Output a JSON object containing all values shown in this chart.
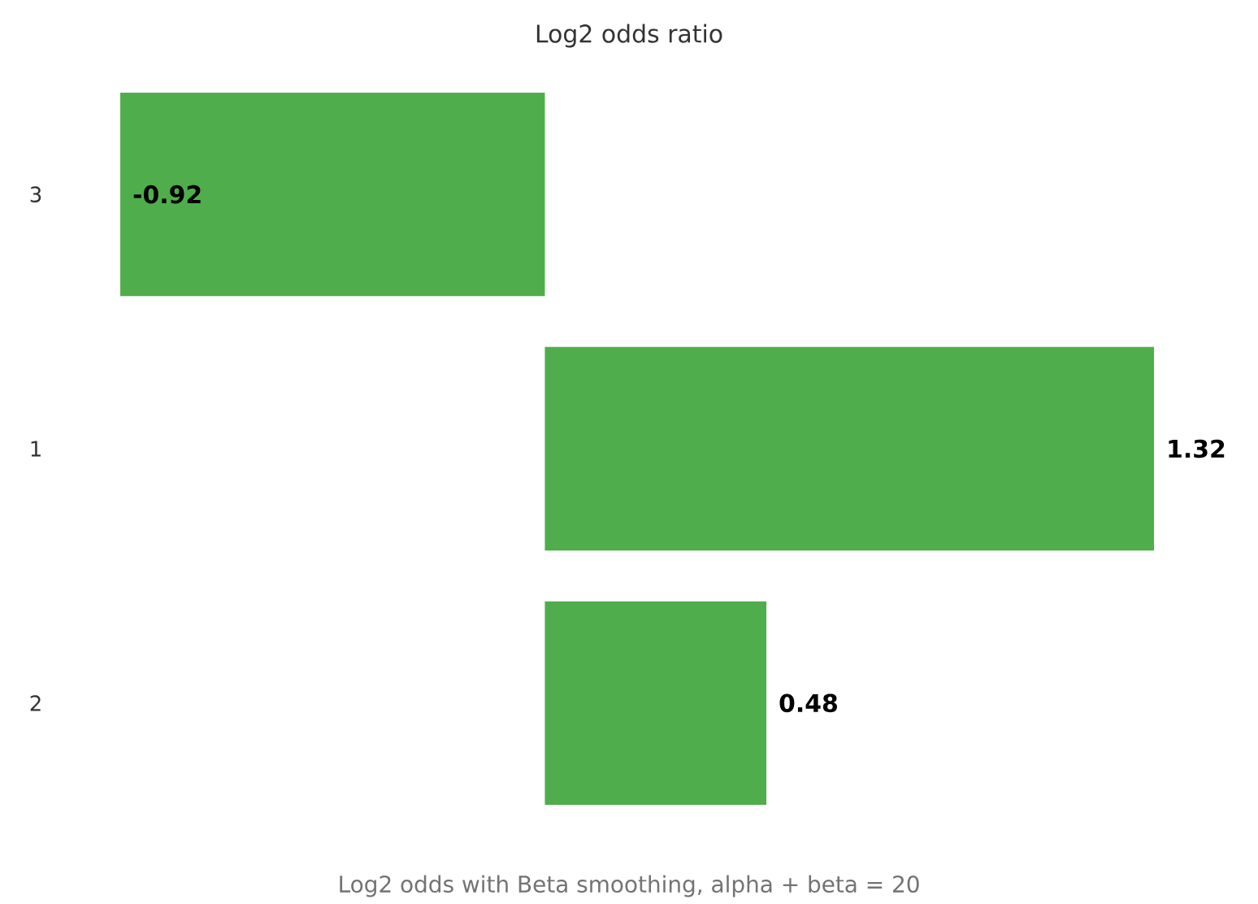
{
  "chart_data": {
    "type": "bar",
    "orientation": "horizontal",
    "title": "Log2 odds ratio",
    "xlabel": "Log2 odds with Beta smoothing, alpha + beta = 20",
    "categories": [
      "3",
      "1",
      "2"
    ],
    "values": [
      -0.92,
      1.32,
      0.48
    ],
    "value_labels": [
      "-0.92",
      "1.32",
      "0.48"
    ],
    "color": "#4fae4b"
  }
}
